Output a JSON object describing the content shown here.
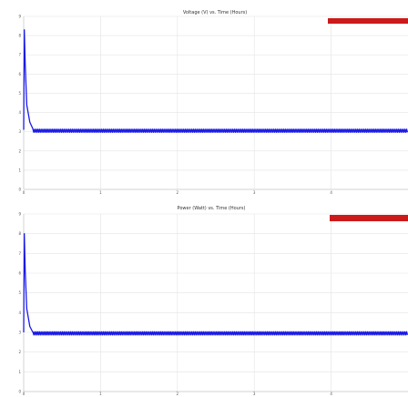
{
  "colors": {
    "series": "#1a1ae6",
    "grid": "#e4e4e4",
    "axis": "#c8c8c8",
    "legend_bg": "#cc1a1a",
    "background": "#ffffff"
  },
  "chart_data": [
    {
      "type": "line",
      "title": "Voltage (V) vs. Time (Hours)",
      "xlabel": "",
      "ylabel": "",
      "xlim": [
        0,
        5
      ],
      "ylim": [
        0,
        9
      ],
      "x_ticks": [
        "0",
        "1",
        "2",
        "3",
        "4"
      ],
      "y_ticks": [
        "9",
        "8",
        "7",
        "6",
        "5",
        "4",
        "3",
        "2",
        "1",
        "0"
      ],
      "grid": true,
      "legend_position": "top-right",
      "series": [
        {
          "initial_spike": {
            "x": [
              0,
              0.008,
              0.02,
              0.04,
              0.08,
              0.12
            ],
            "y": [
              3.1,
              8.3,
              6.5,
              4.4,
              3.5,
              3.15
            ]
          },
          "steady_level": 3.05,
          "oscillation_amplitude": 0.08
        }
      ]
    },
    {
      "type": "line",
      "title": "Power (Watt) vs. Time (Hours)",
      "xlabel": "",
      "ylabel": "",
      "xlim": [
        0,
        5
      ],
      "ylim": [
        0,
        9
      ],
      "x_ticks": [
        "0",
        "1",
        "2",
        "3",
        "4"
      ],
      "y_ticks": [
        "9",
        "8",
        "7",
        "6",
        "5",
        "4",
        "3",
        "2",
        "1",
        "0"
      ],
      "grid": true,
      "legend_position": "top-right",
      "series": [
        {
          "initial_spike": {
            "x": [
              0,
              0.008,
              0.02,
              0.04,
              0.08,
              0.12
            ],
            "y": [
              3.0,
              8.0,
              6.1,
              4.2,
              3.3,
              3.0
            ]
          },
          "steady_level": 2.95,
          "oscillation_amplitude": 0.08
        }
      ]
    }
  ]
}
